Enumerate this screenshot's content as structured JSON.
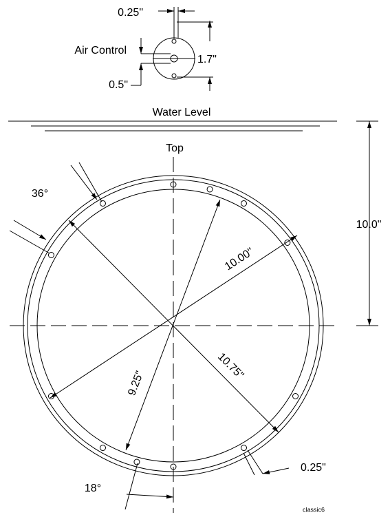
{
  "detail": {
    "top_gap": "0.25\"",
    "air_control": "Air Control",
    "height": "1.7\"",
    "bottom": "0.5\""
  },
  "water_level": "Water Level",
  "top": "Top",
  "dimensions": {
    "angle_36": "36°",
    "depth": "10.0\"",
    "d_10_00": "10.00\"",
    "d_10_75": "10.75\"",
    "d_9_25": "9.25\"",
    "hole": "0.25\"",
    "angle_18": "18°"
  },
  "footer": "classic6"
}
